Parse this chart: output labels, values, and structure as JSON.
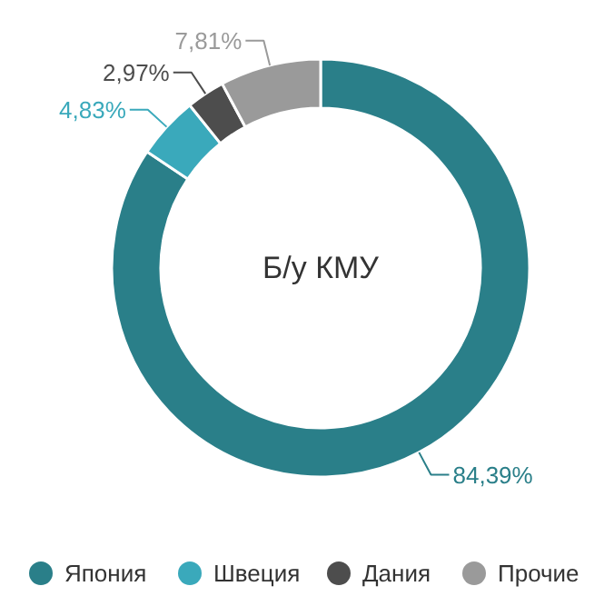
{
  "chart_data": {
    "type": "donut",
    "title": "Б/у КМУ",
    "categories": [
      "Япония",
      "Швеция",
      "Дания",
      "Прочие"
    ],
    "values": [
      84.39,
      4.83,
      2.97,
      7.81
    ],
    "colors": [
      "#2a7f89",
      "#3aa9bb",
      "#4d4d4d",
      "#9a9a9a"
    ],
    "value_labels": [
      "84,39%",
      "4,83%",
      "2,97%",
      "7,81%"
    ],
    "legend": "bottom"
  }
}
